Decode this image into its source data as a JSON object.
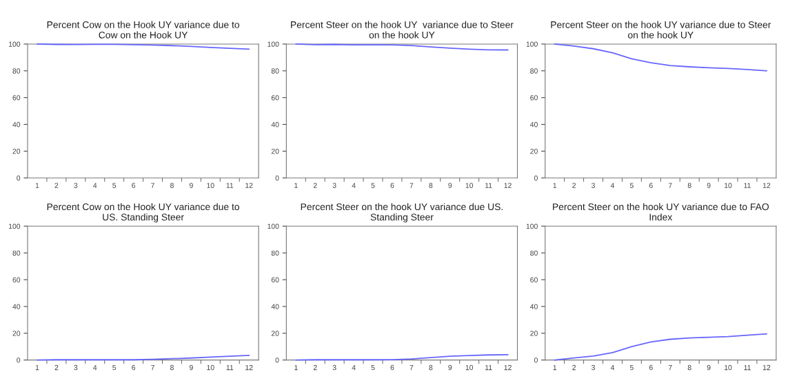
{
  "chart_data": [
    {
      "type": "line",
      "title": "Percent Cow on the Hook UY variance due to\nCow on the Hook UY",
      "categories": [
        "1",
        "2",
        "3",
        "4",
        "5",
        "6",
        "7",
        "8",
        "9",
        "10",
        "11",
        "12"
      ],
      "color": "#6666ff",
      "values": [
        100,
        99.7,
        99.6,
        99.8,
        99.8,
        99.5,
        99.3,
        98.8,
        98.2,
        97.5,
        96.8,
        96.2
      ],
      "ylim": [
        0,
        100
      ],
      "yticks": [
        0,
        20,
        40,
        60,
        80,
        100
      ],
      "grid": false
    },
    {
      "type": "line",
      "title": "Percent Steer on the hook UY  variance due to Steer\non the hook UY",
      "categories": [
        "1",
        "2",
        "3",
        "4",
        "5",
        "6",
        "7",
        "8",
        "9",
        "10",
        "11",
        "12"
      ],
      "color": "#6666ff",
      "values": [
        100,
        99.5,
        99.7,
        99.4,
        99.4,
        99.4,
        98.9,
        97.8,
        96.9,
        96.2,
        95.7,
        95.6
      ],
      "ylim": [
        0,
        100
      ],
      "yticks": [
        0,
        20,
        40,
        60,
        80,
        100
      ],
      "grid": false
    },
    {
      "type": "line",
      "title": "Percent Steer on the hook UY variance due to Steer\non the hook UY",
      "categories": [
        "1",
        "2",
        "3",
        "4",
        "5",
        "6",
        "7",
        "8",
        "9",
        "10",
        "11",
        "12"
      ],
      "color": "#6666ff",
      "values": [
        100,
        98.5,
        96.5,
        93.5,
        89,
        86,
        84,
        83,
        82.3,
        81.8,
        81,
        80
      ],
      "ylim": [
        0,
        100
      ],
      "yticks": [
        0,
        20,
        40,
        60,
        80,
        100
      ],
      "grid": false
    },
    {
      "type": "line",
      "title": "Percent Cow on the Hook UY variance due to\nUS. Standing Steer",
      "categories": [
        "1",
        "2",
        "3",
        "4",
        "5",
        "6",
        "7",
        "8",
        "9",
        "10",
        "11",
        "12"
      ],
      "color": "#6666ff",
      "values": [
        0,
        0.2,
        0.2,
        0.2,
        0.2,
        0.2,
        0.5,
        1,
        1.5,
        2.2,
        2.8,
        3.5
      ],
      "ylim": [
        0,
        100
      ],
      "yticks": [
        0,
        20,
        40,
        60,
        80,
        100
      ],
      "grid": false
    },
    {
      "type": "line",
      "title": "Percent Steer on the hook UY variance due US.\nStanding Steer",
      "categories": [
        "1",
        "2",
        "3",
        "4",
        "5",
        "6",
        "7",
        "8",
        "9",
        "10",
        "11",
        "12"
      ],
      "color": "#6666ff",
      "values": [
        0,
        0.2,
        0.2,
        0.2,
        0.2,
        0.3,
        0.8,
        1.8,
        2.8,
        3.4,
        3.8,
        4
      ],
      "ylim": [
        0,
        100
      ],
      "yticks": [
        0,
        20,
        40,
        60,
        80,
        100
      ],
      "grid": false
    },
    {
      "type": "line",
      "title": "Percent Steer on the hook UY variance due to FAO\nIndex",
      "categories": [
        "1",
        "2",
        "3",
        "4",
        "5",
        "6",
        "7",
        "8",
        "9",
        "10",
        "11",
        "12"
      ],
      "color": "#6666ff",
      "values": [
        0,
        1.5,
        3,
        5.5,
        10,
        13.5,
        15.5,
        16.5,
        17,
        17.5,
        18.5,
        19.5
      ],
      "ylim": [
        0,
        100
      ],
      "yticks": [
        0,
        20,
        40,
        60,
        80,
        100
      ],
      "grid": false
    }
  ]
}
